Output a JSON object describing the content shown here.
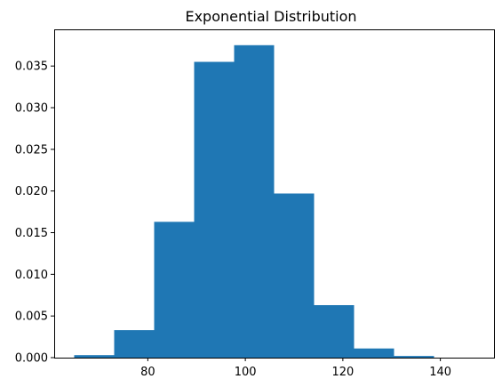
{
  "chart_data": {
    "type": "bar",
    "title": "Exponential Distribution",
    "xlabel": "",
    "ylabel": "",
    "bin_edges": [
      64.9,
      73.1,
      81.3,
      89.5,
      97.7,
      105.9,
      114.1,
      122.3,
      130.5,
      138.7,
      146.9
    ],
    "values": [
      0.0003,
      0.0033,
      0.0163,
      0.0355,
      0.0375,
      0.0197,
      0.0063,
      0.0011,
      0.0002,
      0.0
    ],
    "xlim": [
      60.8,
      151.0
    ],
    "ylim": [
      0,
      0.0394
    ],
    "xticks": [
      80,
      100,
      120,
      140
    ],
    "xtick_labels": [
      "80",
      "100",
      "120",
      "140"
    ],
    "yticks": [
      0,
      0.005,
      0.01,
      0.015,
      0.02,
      0.025,
      0.03,
      0.035
    ],
    "ytick_labels": [
      "0.000",
      "0.005",
      "0.010",
      "0.015",
      "0.020",
      "0.025",
      "0.030",
      "0.035"
    ],
    "bar_color": "#1f77b4",
    "grid": false,
    "legend": "none"
  }
}
